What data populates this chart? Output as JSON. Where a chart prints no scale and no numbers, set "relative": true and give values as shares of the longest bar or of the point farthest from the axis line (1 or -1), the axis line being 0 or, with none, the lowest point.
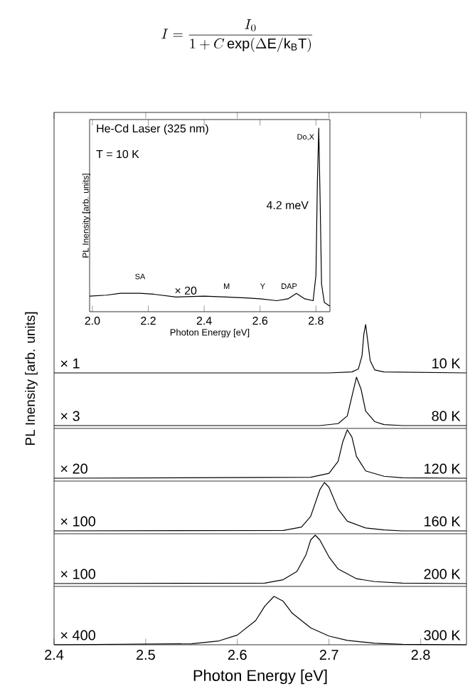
{
  "chart_data": [
    {
      "type": "line",
      "relative": true,
      "ylabel": "PL Inensity [arb. units]",
      "xlim": [
        2.4,
        2.85
      ],
      "xticks": [
        2.4,
        2.5,
        2.6,
        2.7,
        2.8
      ],
      "tick_labels": false,
      "annotations": [
        "× 1",
        "10 K"
      ],
      "series": [
        {
          "color": "#000000",
          "x": [
            2.4,
            2.7,
            2.725,
            2.732,
            2.736,
            2.738,
            2.74,
            2.742,
            2.745,
            2.75,
            2.76,
            2.85
          ],
          "values": [
            0,
            0,
            0.02,
            0.08,
            0.35,
            0.8,
            1,
            0.7,
            0.25,
            0.06,
            0.02,
            0
          ]
        }
      ]
    },
    {
      "type": "line",
      "relative": true,
      "xlim": [
        2.4,
        2.85
      ],
      "annotations": [
        "× 3",
        "80 K"
      ],
      "series": [
        {
          "color": "#000000",
          "x": [
            2.4,
            2.69,
            2.71,
            2.72,
            2.725,
            2.73,
            2.735,
            2.74,
            2.75,
            2.76,
            2.78,
            2.85
          ],
          "values": [
            0,
            0,
            0.04,
            0.2,
            0.6,
            1,
            0.75,
            0.3,
            0.08,
            0.02,
            0,
            0
          ]
        }
      ]
    },
    {
      "type": "line",
      "relative": true,
      "xlim": [
        2.4,
        2.85
      ],
      "annotations": [
        "× 20",
        "120 K"
      ],
      "series": [
        {
          "color": "#000000",
          "x": [
            2.4,
            2.68,
            2.7,
            2.71,
            2.715,
            2.72,
            2.725,
            2.73,
            2.74,
            2.76,
            2.78,
            2.85
          ],
          "values": [
            0,
            0.02,
            0.1,
            0.35,
            0.75,
            1,
            0.85,
            0.45,
            0.15,
            0.04,
            0.01,
            0
          ]
        }
      ]
    },
    {
      "type": "line",
      "relative": true,
      "xlim": [
        2.4,
        2.85
      ],
      "annotations": [
        "× 100",
        "160 K"
      ],
      "series": [
        {
          "color": "#000000",
          "x": [
            2.4,
            2.65,
            2.67,
            2.68,
            2.69,
            2.695,
            2.7,
            2.71,
            2.72,
            2.74,
            2.76,
            2.78,
            2.85
          ],
          "values": [
            0,
            0.01,
            0.08,
            0.3,
            0.85,
            1,
            0.9,
            0.45,
            0.2,
            0.06,
            0.02,
            0,
            0
          ]
        }
      ]
    },
    {
      "type": "line",
      "relative": true,
      "xlim": [
        2.4,
        2.85
      ],
      "annotations": [
        "× 100",
        "200 K"
      ],
      "series": [
        {
          "color": "#000000",
          "x": [
            2.4,
            2.63,
            2.65,
            2.665,
            2.675,
            2.68,
            2.685,
            2.69,
            2.7,
            2.71,
            2.73,
            2.75,
            2.78,
            2.85
          ],
          "values": [
            0,
            0.01,
            0.08,
            0.25,
            0.6,
            0.9,
            1,
            0.9,
            0.55,
            0.3,
            0.1,
            0.04,
            0.01,
            0
          ]
        }
      ]
    },
    {
      "type": "line",
      "relative": true,
      "xlabel": "Photon Energy [eV]",
      "xlim": [
        2.4,
        2.85
      ],
      "xticks": [
        2.4,
        2.5,
        2.6,
        2.7,
        2.8
      ],
      "tick_labels": "x",
      "annotations": [
        "× 400",
        "300 K"
      ],
      "series": [
        {
          "color": "#000000",
          "x": [
            2.4,
            2.55,
            2.58,
            2.6,
            2.62,
            2.63,
            2.64,
            2.65,
            2.66,
            2.68,
            2.7,
            2.72,
            2.75,
            2.78,
            2.85
          ],
          "values": [
            0,
            0.02,
            0.08,
            0.2,
            0.5,
            0.8,
            1,
            0.9,
            0.65,
            0.35,
            0.18,
            0.09,
            0.03,
            0.01,
            0
          ]
        }
      ]
    },
    {
      "type": "line",
      "relative": true,
      "xlabel": "Photon Energy [eV]",
      "ylabel": "PL Inensity [arb. units]",
      "xlim": [
        1.99,
        2.85
      ],
      "tick_labels": "x",
      "xticks": [
        {
          "value": 2.0,
          "label": "2.0"
        },
        {
          "value": 2.2,
          "label": "2.2"
        },
        {
          "value": 2.4,
          "label": "2.4"
        },
        {
          "value": 2.6,
          "label": "2.6"
        },
        {
          "value": 2.8,
          "label": "2.8"
        }
      ],
      "annotations": [
        "He-Cd Laser (325 nm)",
        "T = 10 K",
        "SA",
        "× 20",
        "M",
        "Y",
        "DAP",
        {
          "text": "Do,X",
          "x": 2.8,
          "y": 0.95
        },
        {
          "text": "4.2 meV",
          "x": 2.8,
          "y": 0.58
        }
      ],
      "series": [
        {
          "color": "#000000",
          "x": [
            1.99,
            2.05,
            2.1,
            2.17,
            2.22,
            2.3,
            2.4,
            2.48,
            2.55,
            2.6,
            2.66,
            2.7,
            2.73,
            2.76,
            2.79,
            2.8,
            2.805,
            2.81,
            2.815,
            2.82,
            2.83,
            2.85
          ],
          "values": [
            0.085,
            0.09,
            0.1,
            0.1,
            0.095,
            0.08,
            0.085,
            0.08,
            0.075,
            0.07,
            0.06,
            0.07,
            0.1,
            0.07,
            0.06,
            0.2,
            0.7,
            1,
            0.6,
            0.15,
            0.05,
            0.03
          ]
        }
      ]
    },
    {
      "type": "other",
      "title": "I = \\frac{I_0}{1 + C\\exp(\\Delta \\mathrm{E}/\\mathrm{k_B T})}"
    }
  ]
}
